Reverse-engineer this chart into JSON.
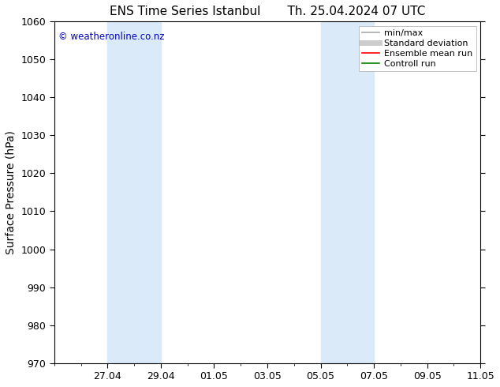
{
  "title_left": "ENS Time Series Istanbul",
  "title_right": "Th. 25.04.2024 07 UTC",
  "ylabel": "Surface Pressure (hPa)",
  "watermark": "© weatheronline.co.nz",
  "watermark_color": "#0000cc",
  "ylim": [
    970,
    1060
  ],
  "yticks": [
    970,
    980,
    990,
    1000,
    1010,
    1020,
    1030,
    1040,
    1050,
    1060
  ],
  "x_min": 0,
  "x_max": 16,
  "xtick_labels": [
    "27.04",
    "29.04",
    "01.05",
    "03.05",
    "05.05",
    "07.05",
    "09.05",
    "11.05"
  ],
  "xtick_positions": [
    2,
    4,
    6,
    8,
    10,
    12,
    14,
    16
  ],
  "shaded_regions": [
    {
      "start": 2,
      "end": 4,
      "color": "#daeaf8"
    },
    {
      "start": 10,
      "end": 12,
      "color": "#daeaf8"
    }
  ],
  "background_color": "#ffffff",
  "plot_bg_color": "#ffffff",
  "legend_entries": [
    {
      "label": "min/max",
      "color": "#aaaaaa",
      "lw": 1.2,
      "style": "solid"
    },
    {
      "label": "Standard deviation",
      "color": "#cccccc",
      "lw": 5,
      "style": "solid"
    },
    {
      "label": "Ensemble mean run",
      "color": "#ff0000",
      "lw": 1.2,
      "style": "solid"
    },
    {
      "label": "Controll run",
      "color": "#008000",
      "lw": 1.2,
      "style": "solid"
    }
  ],
  "title_fontsize": 11,
  "tick_fontsize": 9,
  "label_fontsize": 10,
  "watermark_fontsize": 8.5,
  "legend_fontsize": 8
}
